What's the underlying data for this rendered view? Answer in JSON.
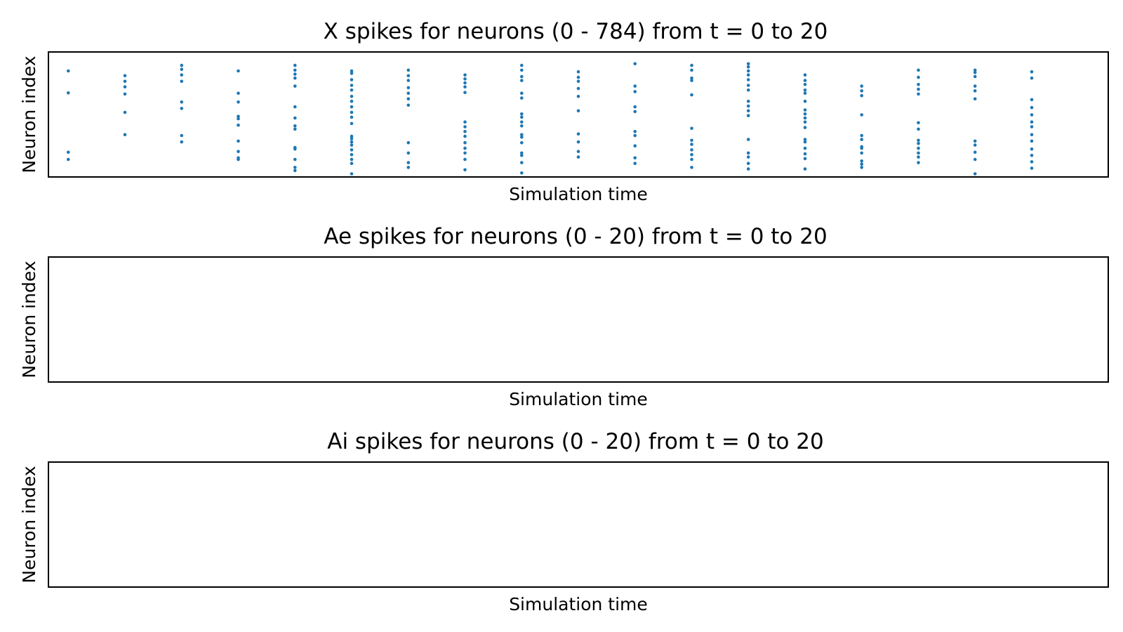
{
  "chart_data": [
    {
      "type": "scatter",
      "title": "X spikes for neurons (0 - 784) from t = 0 to 20",
      "xlabel": "Simulation time",
      "ylabel": "Neuron index",
      "xlim": [
        -0.35,
        18.35
      ],
      "ylim": [
        0,
        784
      ],
      "color": "#1f77b4",
      "grid": false,
      "columns": [
        {
          "t": 0,
          "neurons": [
            665,
            527,
            155,
            110
          ]
        },
        {
          "t": 1,
          "neurons": [
            635,
            600,
            565,
            520,
            405,
            265
          ]
        },
        {
          "t": 2,
          "neurons": [
            700,
            675,
            640,
            600,
            470,
            430,
            260,
            220
          ]
        },
        {
          "t": 3,
          "neurons": [
            665,
            525,
            470,
            380,
            365,
            325,
            225,
            160,
            120,
            110
          ]
        },
        {
          "t": 4,
          "neurons": [
            700,
            670,
            645,
            620,
            570,
            440,
            370,
            320,
            300,
            185,
            175,
            110,
            60,
            40
          ]
        },
        {
          "t": 5,
          "neurons": [
            665,
            650,
            610,
            575,
            545,
            505,
            475,
            440,
            405,
            375,
            335,
            255,
            240,
            220,
            200,
            170,
            140,
            110,
            85,
            20
          ]
        },
        {
          "t": 6,
          "neurons": [
            670,
            635,
            605,
            560,
            525,
            490,
            450,
            215,
            150,
            90,
            60
          ]
        },
        {
          "t": 7,
          "neurons": [
            640,
            615,
            590,
            565,
            530,
            345,
            315,
            285,
            255,
            215,
            180,
            150,
            110,
            45
          ]
        },
        {
          "t": 8,
          "neurons": [
            700,
            670,
            630,
            605,
            525,
            495,
            395,
            375,
            345,
            320,
            265,
            250,
            215,
            150,
            135,
            90,
            25
          ]
        },
        {
          "t": 9,
          "neurons": [
            660,
            625,
            600,
            555,
            505,
            415,
            270,
            220,
            160,
            125
          ]
        },
        {
          "t": 10,
          "neurons": [
            710,
            570,
            535,
            440,
            410,
            285,
            260,
            195,
            120,
            85
          ]
        },
        {
          "t": 11,
          "neurons": [
            700,
            670,
            620,
            605,
            515,
            305,
            230,
            205,
            170,
            140,
            110,
            60
          ]
        },
        {
          "t": 12,
          "neurons": [
            710,
            690,
            665,
            640,
            610,
            575,
            545,
            475,
            445,
            415,
            385,
            235,
            150,
            125,
            85,
            50
          ]
        },
        {
          "t": 13,
          "neurons": [
            640,
            605,
            580,
            545,
            525,
            475,
            420,
            395,
            370,
            345,
            310,
            235,
            220,
            180,
            145,
            115,
            50
          ]
        },
        {
          "t": 14,
          "neurons": [
            570,
            540,
            510,
            390,
            260,
            235,
            190,
            180,
            150,
            100,
            80,
            60
          ]
        },
        {
          "t": 15,
          "neurons": [
            670,
            625,
            580,
            550,
            520,
            340,
            300,
            230,
            210,
            180,
            150,
            125,
            90
          ]
        },
        {
          "t": 16,
          "neurons": [
            670,
            655,
            630,
            570,
            540,
            490,
            225,
            200,
            155,
            110,
            20
          ]
        },
        {
          "t": 17,
          "neurons": [
            660,
            620,
            485,
            435,
            390,
            345,
            315,
            265,
            225,
            175,
            135,
            95,
            55
          ]
        }
      ]
    },
    {
      "type": "scatter",
      "title": "Ae spikes for neurons (0 - 20) from t = 0 to 20",
      "xlabel": "Simulation time",
      "ylabel": "Neuron index",
      "columns": []
    },
    {
      "type": "scatter",
      "title": "Ai spikes for neurons (0 - 20) from t = 0 to 20",
      "xlabel": "Simulation time",
      "ylabel": "Neuron index",
      "columns": []
    }
  ]
}
